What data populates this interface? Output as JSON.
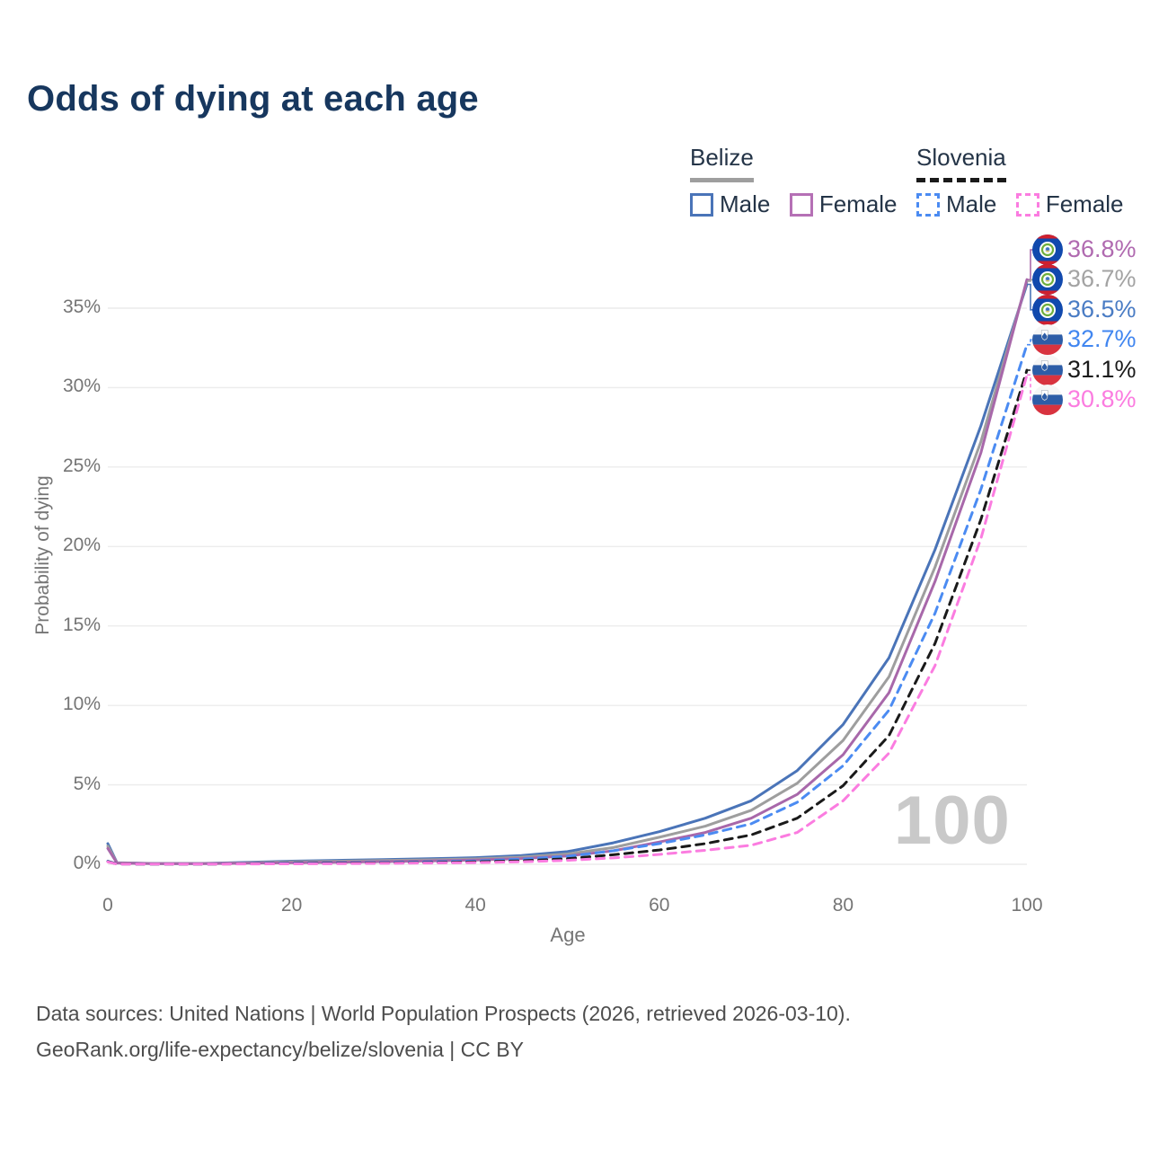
{
  "header": {
    "title": "Odds of dying at each age"
  },
  "legend": {
    "groups": [
      {
        "name": "Belize",
        "line_style": "solid",
        "line_color": "#9e9e9e",
        "items": [
          {
            "label": "Male",
            "swatch_style": "solid",
            "swatch_color": "#4a74b8"
          },
          {
            "label": "Female",
            "swatch_style": "solid",
            "swatch_color": "#b570b5"
          }
        ]
      },
      {
        "name": "Slovenia",
        "line_style": "dashed",
        "line_color": "#1a1a1a",
        "items": [
          {
            "label": "Male",
            "swatch_style": "dashed",
            "swatch_color": "#4b8bf2"
          },
          {
            "label": "Female",
            "swatch_style": "dashed",
            "swatch_color": "#fb7ce0"
          }
        ]
      }
    ]
  },
  "chart_data": {
    "type": "line",
    "title": "Odds of dying at each age",
    "xlabel": "Age",
    "ylabel": "Probability of dying",
    "xlim": [
      0,
      100
    ],
    "ylim": [
      0,
      38
    ],
    "grid": "horizontal-only",
    "legend_position": "top-right",
    "x_ticks": [
      0,
      20,
      40,
      60,
      80,
      100
    ],
    "y_ticks": [
      "0%",
      "5%",
      "10%",
      "15%",
      "20%",
      "25%",
      "30%",
      "35%"
    ],
    "y_tick_values": [
      0,
      5,
      10,
      15,
      20,
      25,
      30,
      35
    ],
    "age_marker": "100",
    "ages": [
      0,
      1,
      5,
      10,
      15,
      20,
      25,
      30,
      35,
      40,
      45,
      50,
      55,
      60,
      65,
      70,
      75,
      80,
      85,
      90,
      95,
      100
    ],
    "series": [
      {
        "name": "Belize Male",
        "country": "Belize",
        "sex": "Male",
        "color": "#4a74b8",
        "dash": "solid",
        "values": [
          1.3,
          0.1,
          0.05,
          0.05,
          0.12,
          0.2,
          0.25,
          0.3,
          0.35,
          0.42,
          0.55,
          0.8,
          1.35,
          2.05,
          2.9,
          4.0,
          5.9,
          8.8,
          13.0,
          19.8,
          27.6,
          36.5
        ],
        "end_value": "36.5%"
      },
      {
        "name": "Belize Both sexes",
        "country": "Belize",
        "sex": "Both",
        "color": "#9e9e9e",
        "dash": "solid",
        "values": [
          1.15,
          0.09,
          0.04,
          0.04,
          0.09,
          0.15,
          0.19,
          0.24,
          0.28,
          0.34,
          0.45,
          0.65,
          1.05,
          1.7,
          2.4,
          3.4,
          5.1,
          7.8,
          11.8,
          18.7,
          26.6,
          36.7
        ],
        "end_value": "36.7%"
      },
      {
        "name": "Belize Female",
        "country": "Belize",
        "sex": "Female",
        "color": "#a868aa",
        "dash": "solid",
        "values": [
          1.0,
          0.08,
          0.04,
          0.04,
          0.07,
          0.1,
          0.13,
          0.17,
          0.21,
          0.27,
          0.36,
          0.52,
          0.85,
          1.4,
          2.0,
          2.9,
          4.4,
          6.9,
          10.8,
          17.8,
          25.9,
          36.8
        ],
        "end_value": "36.8%"
      },
      {
        "name": "Slovenia Male",
        "country": "Slovenia",
        "sex": "Male",
        "color": "#4b8bf2",
        "dash": "dashed",
        "values": [
          0.2,
          0.02,
          0.01,
          0.01,
          0.04,
          0.08,
          0.1,
          0.12,
          0.15,
          0.21,
          0.32,
          0.5,
          0.85,
          1.3,
          1.85,
          2.55,
          3.9,
          6.2,
          9.7,
          15.8,
          23.6,
          32.7
        ],
        "end_value": "32.7%"
      },
      {
        "name": "Slovenia Both sexes",
        "country": "Slovenia",
        "sex": "Both",
        "color": "#1a1a1a",
        "dash": "dashed",
        "values": [
          0.17,
          0.02,
          0.01,
          0.01,
          0.03,
          0.05,
          0.07,
          0.09,
          0.11,
          0.15,
          0.22,
          0.35,
          0.6,
          0.9,
          1.3,
          1.85,
          2.9,
          4.95,
          8.1,
          13.9,
          21.7,
          31.1
        ],
        "end_value": "31.1%"
      },
      {
        "name": "Slovenia Female",
        "country": "Slovenia",
        "sex": "Female",
        "color": "#fb7ce0",
        "dash": "dashed",
        "values": [
          0.15,
          0.01,
          0.01,
          0.01,
          0.02,
          0.03,
          0.04,
          0.06,
          0.08,
          0.11,
          0.16,
          0.25,
          0.4,
          0.62,
          0.88,
          1.2,
          2.0,
          4.0,
          7.0,
          12.5,
          20.5,
          30.8
        ],
        "end_value": "30.8%"
      }
    ],
    "end_labels": [
      {
        "value": "36.8%",
        "text_color": "#b06ab0",
        "flag": "belize",
        "series": "Belize Female"
      },
      {
        "value": "36.7%",
        "text_color": "#a3a3a3",
        "flag": "belize",
        "series": "Belize Both sexes"
      },
      {
        "value": "36.5%",
        "text_color": "#4a7cc4",
        "flag": "belize",
        "series": "Belize Male"
      },
      {
        "value": "32.7%",
        "text_color": "#4186f0",
        "flag": "slovenia",
        "series": "Slovenia Male"
      },
      {
        "value": "31.1%",
        "text_color": "#1a1a1a",
        "flag": "slovenia",
        "series": "Slovenia Both sexes"
      },
      {
        "value": "30.8%",
        "text_color": "#fb7ce0",
        "flag": "slovenia",
        "series": "Slovenia Female"
      }
    ]
  },
  "footer": {
    "line1": "Data sources: United Nations | World Population Prospects (2026, retrieved 2026-03-10).",
    "line2": "GeoRank.org/life-expectancy/belize/slovenia | CC BY"
  },
  "colors": {
    "title": "#17375e",
    "axis_text": "#757575",
    "gridline": "#ececec",
    "watermark": "#c9c9c9",
    "footer_text": "#4d4d4d"
  }
}
